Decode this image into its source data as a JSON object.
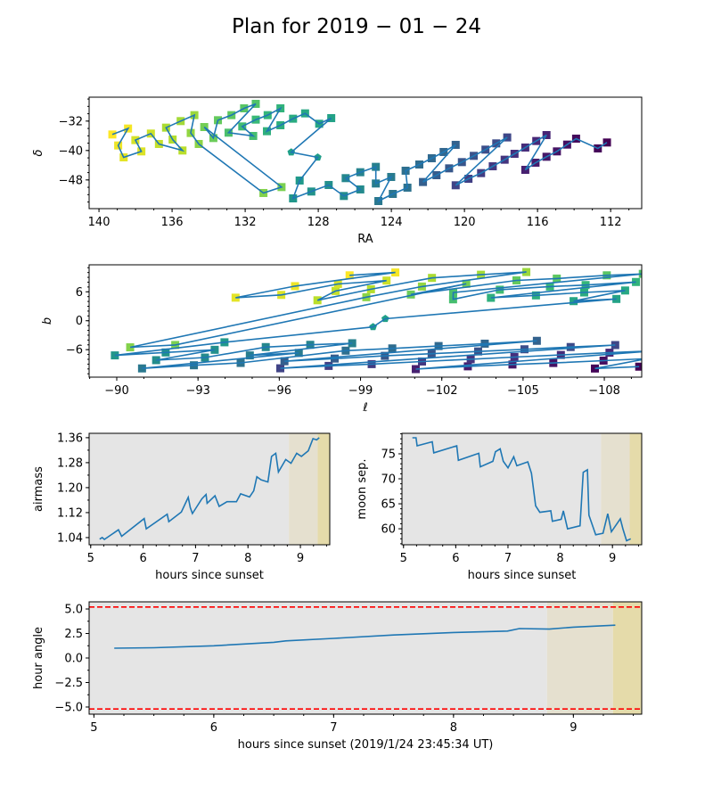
{
  "chart_data": [
    {
      "type": "scatter",
      "title": "Plan for 2019 − 01 − 24",
      "xlabel": "RA",
      "ylabel": "δ",
      "xlim": [
        140.54,
        110.3
      ],
      "ylim": [
        -55.8,
        -25.5
      ],
      "xticks": [
        140,
        136,
        132,
        128,
        124,
        120,
        116,
        112
      ],
      "xtick_labels": [
        "140",
        "136",
        "132",
        "128",
        "124",
        "120",
        "116",
        "112"
      ],
      "yticks": [
        -32,
        -40,
        -48
      ],
      "ytick_labels": [
        "−32",
        "−40",
        "−48"
      ],
      "connected": true,
      "line_color": "#1f77b4",
      "colormap": "viridis",
      "pentagon_indices": [
        44,
        45
      ],
      "points": [
        [
          112.2,
          -37.82
        ],
        [
          112.7,
          -39.43
        ],
        [
          113.89,
          -36.77
        ],
        [
          114.38,
          -38.39
        ],
        [
          114.94,
          -40.24
        ],
        [
          115.51,
          -41.7
        ],
        [
          116.11,
          -43.31
        ],
        [
          116.67,
          -45.25
        ],
        [
          115.51,
          -35.8
        ],
        [
          116.07,
          -37.41
        ],
        [
          116.67,
          -39.19
        ],
        [
          117.26,
          -40.89
        ],
        [
          117.8,
          -42.5
        ],
        [
          118.45,
          -44.28
        ],
        [
          119.09,
          -46.14
        ],
        [
          119.78,
          -47.68
        ],
        [
          120.48,
          -49.45
        ],
        [
          117.66,
          -36.44
        ],
        [
          118.26,
          -38.06
        ],
        [
          118.85,
          -39.76
        ],
        [
          119.49,
          -41.45
        ],
        [
          120.14,
          -43.15
        ],
        [
          120.84,
          -44.85
        ],
        [
          121.53,
          -46.71
        ],
        [
          122.27,
          -48.56
        ],
        [
          120.48,
          -38.46
        ],
        [
          121.14,
          -40.4
        ],
        [
          121.79,
          -42.1
        ],
        [
          122.47,
          -43.8
        ],
        [
          123.22,
          -45.49
        ],
        [
          123.12,
          -50.1
        ],
        [
          123.92,
          -51.8
        ],
        [
          124.71,
          -53.74
        ],
        [
          124.01,
          -47.19
        ],
        [
          124.85,
          -48.97
        ],
        [
          124.85,
          -44.44
        ],
        [
          125.7,
          -45.9
        ],
        [
          126.5,
          -47.51
        ],
        [
          125.7,
          -50.58
        ],
        [
          126.6,
          -52.36
        ],
        [
          127.43,
          -49.37
        ],
        [
          128.38,
          -51.15
        ],
        [
          129.38,
          -53.01
        ],
        [
          129.02,
          -48.16
        ],
        [
          128.03,
          -41.86
        ],
        [
          129.48,
          -40.48
        ],
        [
          127.29,
          -31.19
        ],
        [
          127.95,
          -32.73
        ],
        [
          128.72,
          -29.9
        ],
        [
          129.38,
          -31.35
        ],
        [
          130.07,
          -33.13
        ],
        [
          130.81,
          -34.75
        ],
        [
          130.07,
          -28.53
        ],
        [
          130.77,
          -30.38
        ],
        [
          131.42,
          -31.6
        ],
        [
          132.16,
          -33.45
        ],
        [
          131.56,
          -36.04
        ],
        [
          132.91,
          -35.15
        ],
        [
          131.42,
          -27.31
        ],
        [
          132.06,
          -28.53
        ],
        [
          132.75,
          -30.38
        ],
        [
          133.49,
          -31.76
        ],
        [
          133.74,
          -36.61
        ],
        [
          134.24,
          -33.62
        ],
        [
          130.01,
          -49.94
        ],
        [
          131.0,
          -51.55
        ],
        [
          134.54,
          -38.22
        ],
        [
          134.98,
          -35.23
        ],
        [
          134.78,
          -30.38
        ],
        [
          135.53,
          -32.0
        ],
        [
          136.33,
          -33.78
        ],
        [
          135.97,
          -37.01
        ],
        [
          135.43,
          -40.0
        ],
        [
          136.72,
          -38.22
        ],
        [
          137.16,
          -35.39
        ],
        [
          138.01,
          -37.17
        ],
        [
          137.68,
          -40.24
        ],
        [
          138.65,
          -41.86
        ],
        [
          138.95,
          -38.63
        ],
        [
          138.41,
          -34.02
        ],
        [
          139.27,
          -35.64
        ]
      ]
    },
    {
      "type": "scatter",
      "xlabel": "ℓ",
      "ylabel": "b",
      "coordinates": "galactic",
      "xlim": [
        -88.98,
        -109.38
      ],
      "ylim": [
        -11.7,
        11.6
      ],
      "xticks": [
        -90,
        -93,
        -96,
        -99,
        -102,
        -105,
        -108
      ],
      "xtick_labels": [
        "−90",
        "−93",
        "−96",
        "−99",
        "−102",
        "−105",
        "−108"
      ],
      "yticks": [
        6,
        0,
        -6
      ],
      "ytick_labels": [
        "6",
        "0",
        "−6"
      ],
      "connected": true,
      "line_color": "#1f77b4",
      "colormap": "viridis"
    },
    {
      "type": "line",
      "xlabel": "hours since sunset",
      "ylabel": "airmass",
      "xlim": [
        4.97,
        9.56
      ],
      "ylim": [
        1.017,
        1.374
      ],
      "xticks": [
        5,
        6,
        7,
        8,
        9
      ],
      "xtick_labels": [
        "5",
        "6",
        "7",
        "8",
        "9"
      ],
      "yticks": [
        1.04,
        1.12,
        1.2,
        1.28,
        1.36
      ],
      "ytick_labels": [
        "1.04",
        "1.12",
        "1.20",
        "1.28",
        "1.36"
      ],
      "line_color": "#1f77b4",
      "shaded_regions": [
        {
          "from": 4.97,
          "to": 8.78,
          "color": "#e5e5e5"
        },
        {
          "from": 8.78,
          "to": 9.33,
          "color": "#e5e0cf"
        },
        {
          "from": 9.33,
          "to": 9.56,
          "color": "#e5dbaa"
        }
      ],
      "points": [
        [
          5.17,
          1.035
        ],
        [
          5.22,
          1.04
        ],
        [
          5.26,
          1.034
        ],
        [
          5.53,
          1.065
        ],
        [
          5.59,
          1.044
        ],
        [
          6.02,
          1.101
        ],
        [
          6.06,
          1.068
        ],
        [
          6.46,
          1.115
        ],
        [
          6.49,
          1.091
        ],
        [
          6.73,
          1.122
        ],
        [
          6.86,
          1.169
        ],
        [
          6.9,
          1.136
        ],
        [
          6.94,
          1.117
        ],
        [
          7.12,
          1.164
        ],
        [
          7.2,
          1.178
        ],
        [
          7.22,
          1.15
        ],
        [
          7.37,
          1.174
        ],
        [
          7.45,
          1.14
        ],
        [
          7.6,
          1.155
        ],
        [
          7.78,
          1.155
        ],
        [
          7.86,
          1.18
        ],
        [
          8.03,
          1.17
        ],
        [
          8.11,
          1.19
        ],
        [
          8.17,
          1.235
        ],
        [
          8.25,
          1.225
        ],
        [
          8.38,
          1.218
        ],
        [
          8.45,
          1.3
        ],
        [
          8.53,
          1.31
        ],
        [
          8.58,
          1.25
        ],
        [
          8.72,
          1.29
        ],
        [
          8.82,
          1.278
        ],
        [
          8.93,
          1.31
        ],
        [
          9.02,
          1.3
        ],
        [
          9.15,
          1.318
        ],
        [
          9.24,
          1.357
        ],
        [
          9.31,
          1.353
        ],
        [
          9.36,
          1.36
        ]
      ]
    },
    {
      "type": "line",
      "xlabel": "hours since sunset",
      "ylabel": "moon sep.",
      "xlim": [
        4.97,
        9.56
      ],
      "ylim": [
        56.8,
        79.1
      ],
      "xticks": [
        5,
        6,
        7,
        8,
        9
      ],
      "xtick_labels": [
        "5",
        "6",
        "7",
        "8",
        "9"
      ],
      "yticks": [
        60,
        65,
        70,
        75
      ],
      "ytick_labels": [
        "60",
        "65",
        "70",
        "75"
      ],
      "line_color": "#1f77b4",
      "shaded_regions": [
        {
          "from": 4.97,
          "to": 8.78,
          "color": "#e5e5e5"
        },
        {
          "from": 8.78,
          "to": 9.33,
          "color": "#e5e0cf"
        },
        {
          "from": 9.33,
          "to": 9.56,
          "color": "#e5dbaa"
        }
      ],
      "points": [
        [
          5.17,
          78.2
        ],
        [
          5.24,
          78.2
        ],
        [
          5.26,
          76.6
        ],
        [
          5.55,
          77.4
        ],
        [
          5.58,
          75.2
        ],
        [
          6.02,
          76.6
        ],
        [
          6.05,
          73.7
        ],
        [
          6.44,
          75.1
        ],
        [
          6.47,
          72.4
        ],
        [
          6.71,
          73.5
        ],
        [
          6.76,
          75.4
        ],
        [
          6.85,
          76.0
        ],
        [
          6.91,
          73.5
        ],
        [
          7.0,
          72.2
        ],
        [
          7.11,
          74.4
        ],
        [
          7.17,
          72.6
        ],
        [
          7.38,
          73.4
        ],
        [
          7.45,
          71.1
        ],
        [
          7.53,
          64.6
        ],
        [
          7.61,
          63.3
        ],
        [
          7.82,
          63.6
        ],
        [
          7.85,
          61.5
        ],
        [
          8.02,
          61.9
        ],
        [
          8.06,
          63.6
        ],
        [
          8.14,
          60.0
        ],
        [
          8.38,
          60.6
        ],
        [
          8.44,
          71.3
        ],
        [
          8.52,
          71.8
        ],
        [
          8.55,
          62.7
        ],
        [
          8.68,
          58.8
        ],
        [
          8.82,
          59.1
        ],
        [
          8.91,
          63.0
        ],
        [
          8.98,
          59.4
        ],
        [
          9.15,
          62.0
        ],
        [
          9.2,
          60.0
        ],
        [
          9.27,
          57.6
        ],
        [
          9.35,
          58.0
        ]
      ]
    },
    {
      "type": "line",
      "xlabel": "hours since sunset (2019/1/24 23:45:34 UT)",
      "ylabel": "hour angle",
      "xlim": [
        4.96,
        9.57
      ],
      "ylim": [
        -5.73,
        5.73
      ],
      "xticks": [
        5,
        6,
        7,
        8,
        9
      ],
      "xtick_labels": [
        "5",
        "6",
        "7",
        "8",
        "9"
      ],
      "yticks": [
        5.0,
        2.5,
        0.0,
        -2.5,
        -5.0
      ],
      "ytick_labels": [
        "5.0",
        "2.5",
        "0.0",
        "−2.5",
        "−5.0"
      ],
      "line_color": "#1f77b4",
      "hlines": [
        {
          "y": 5.2,
          "color": "#ff0000",
          "style": "dashed"
        },
        {
          "y": -5.2,
          "color": "#ff0000",
          "style": "dashed"
        }
      ],
      "shaded_regions": [
        {
          "from": 4.96,
          "to": 8.78,
          "color": "#e5e5e5"
        },
        {
          "from": 8.78,
          "to": 9.33,
          "color": "#e5e0cf"
        },
        {
          "from": 9.33,
          "to": 9.57,
          "color": "#e5dbaa"
        }
      ],
      "points": [
        [
          5.17,
          1.0
        ],
        [
          5.5,
          1.05
        ],
        [
          6.0,
          1.25
        ],
        [
          6.5,
          1.6
        ],
        [
          6.6,
          1.75
        ],
        [
          7.0,
          2.0
        ],
        [
          7.5,
          2.35
        ],
        [
          8.0,
          2.6
        ],
        [
          8.45,
          2.75
        ],
        [
          8.55,
          3.0
        ],
        [
          8.8,
          2.95
        ],
        [
          9.0,
          3.15
        ],
        [
          9.35,
          3.35
        ]
      ]
    }
  ]
}
